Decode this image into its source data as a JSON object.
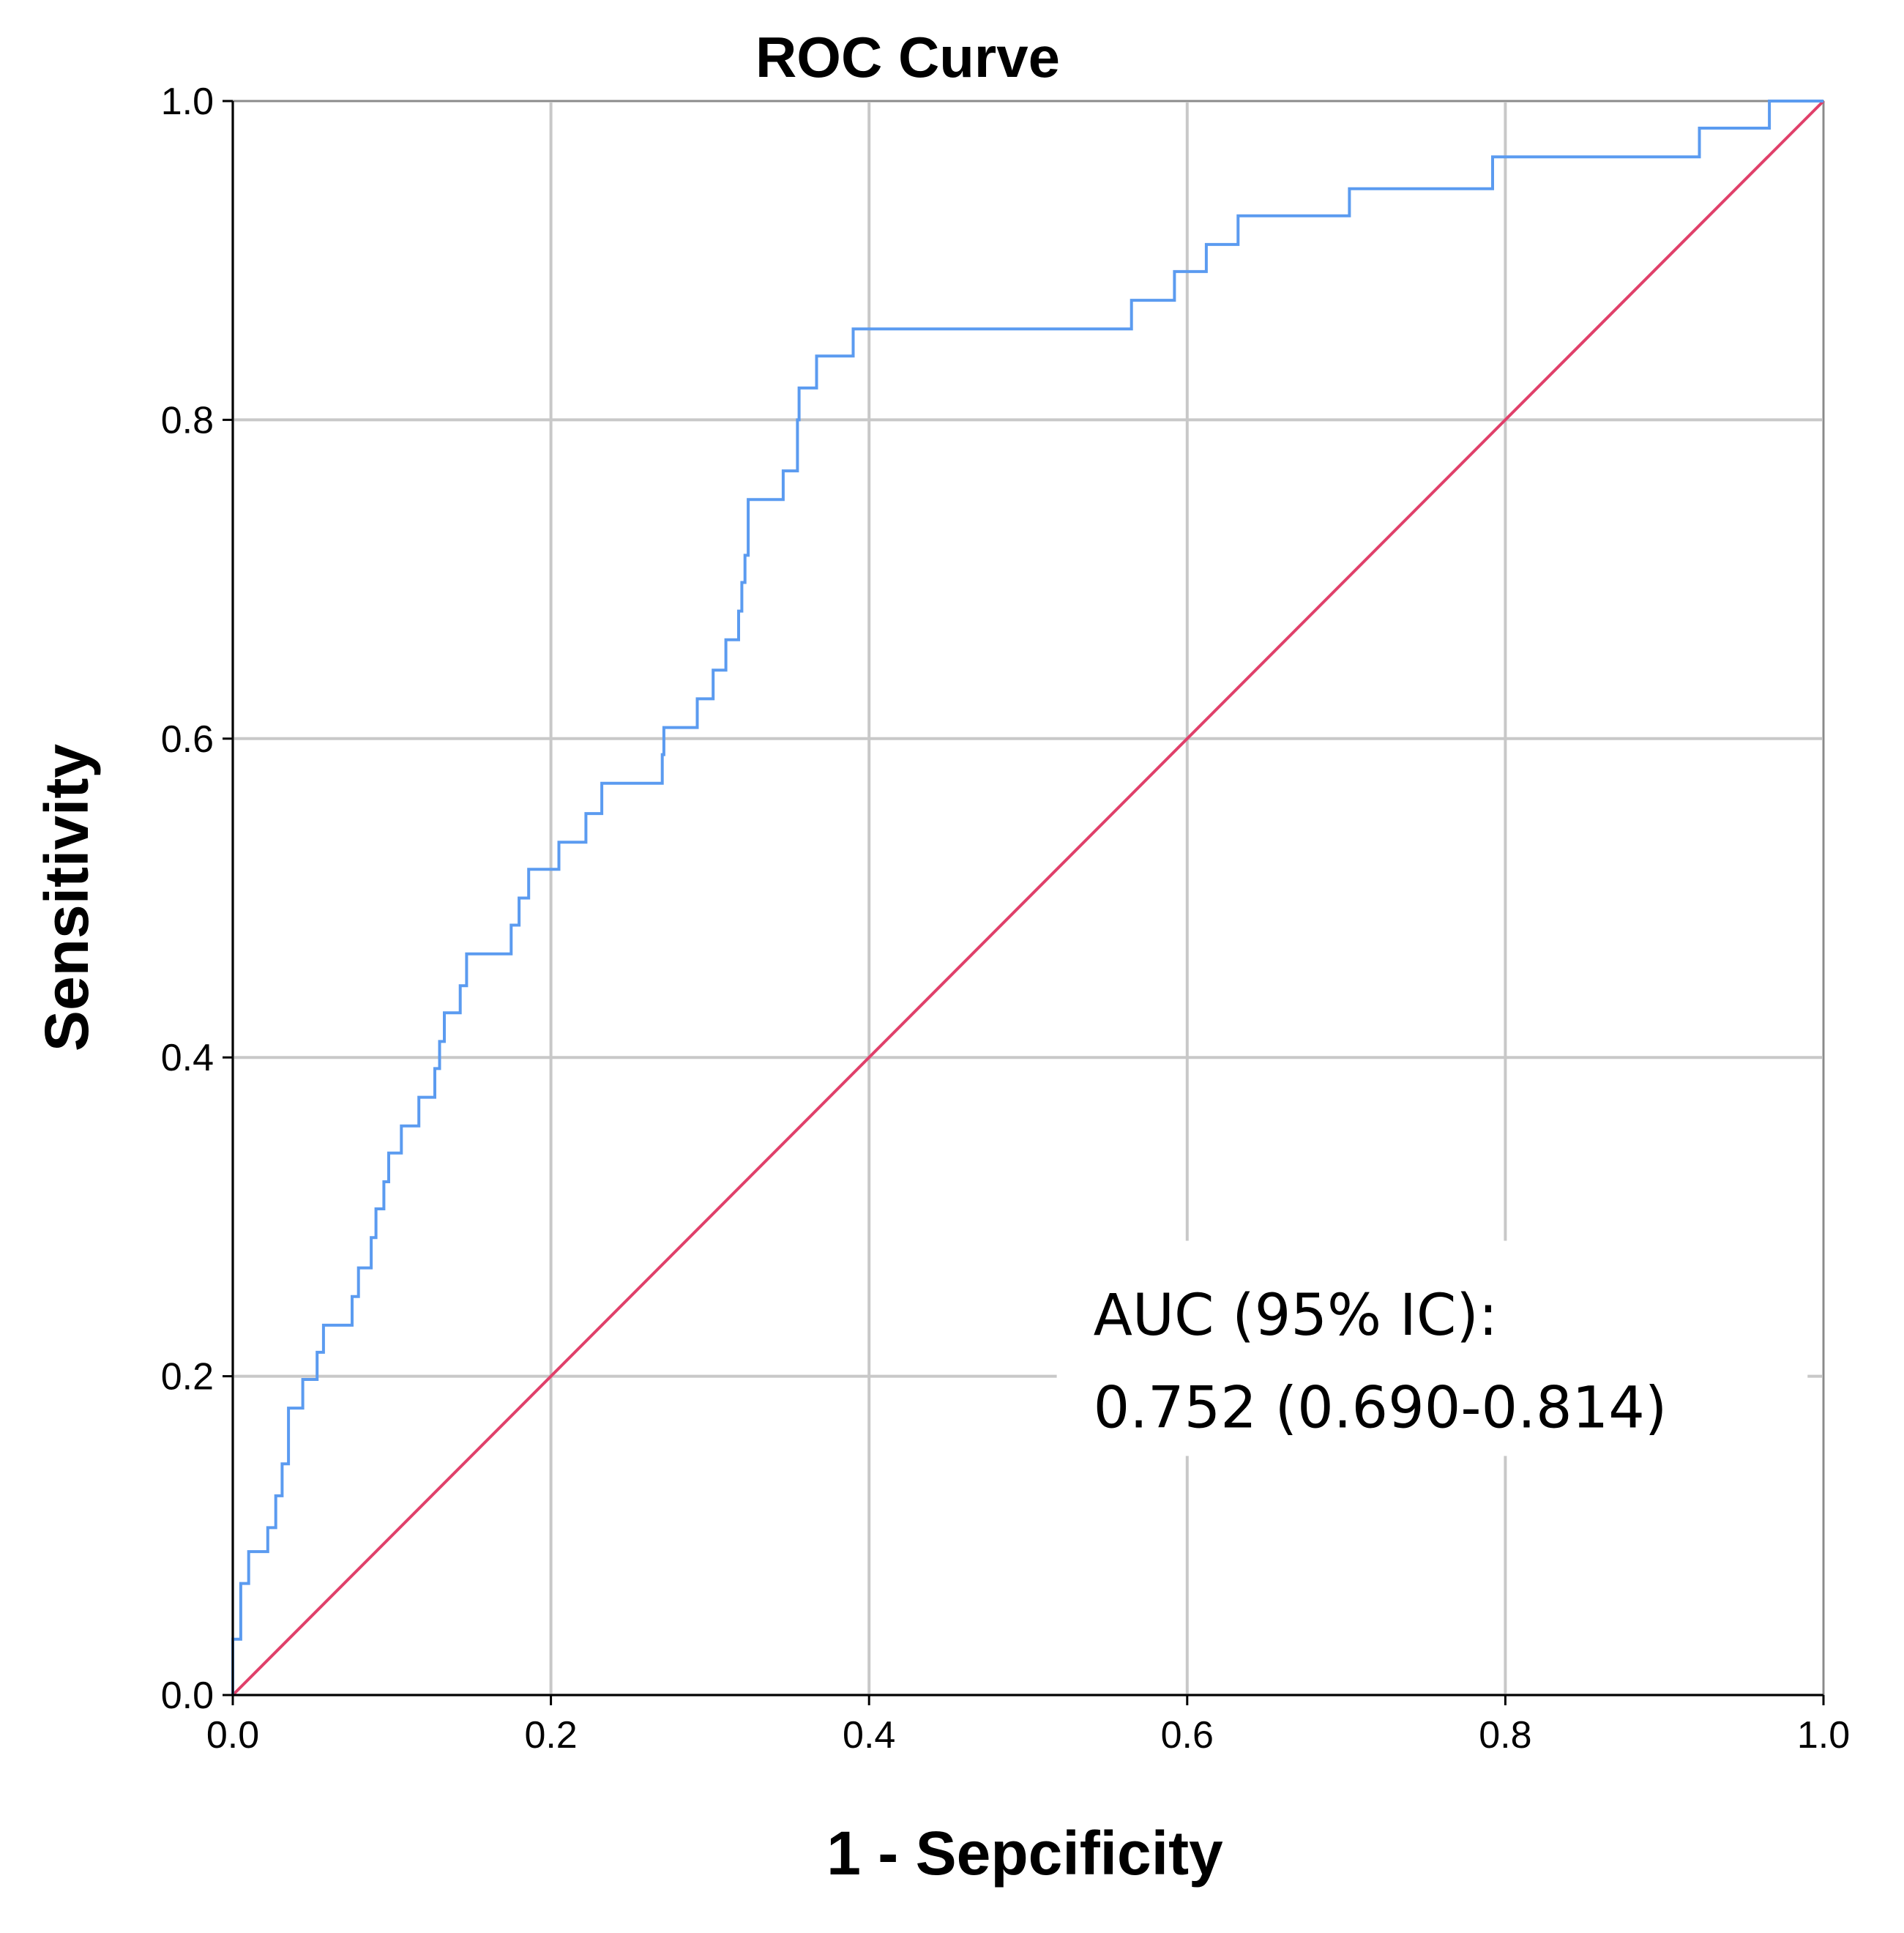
{
  "chart_data": {
    "type": "line",
    "title": "ROC Curve",
    "xlabel": "1 - Sepcificity",
    "ylabel": "Sensitivity",
    "xlim": [
      0,
      1
    ],
    "ylim": [
      0,
      1
    ],
    "grid": true,
    "x_ticks": [
      "0.0",
      "0.2",
      "0.4",
      "0.6",
      "0.8",
      "1.0"
    ],
    "y_ticks": [
      "0.0",
      "0.2",
      "0.4",
      "0.6",
      "0.8",
      "1.0"
    ],
    "annotation": {
      "line1": "AUC (95% IC):",
      "line2": "0.752 (0.690-0.814)"
    },
    "series": [
      {
        "name": "ROC",
        "color": "#5b9bf0",
        "step": true,
        "points": [
          [
            0.0,
            0.0
          ],
          [
            0.0,
            0.035
          ],
          [
            0.005,
            0.035
          ],
          [
            0.005,
            0.07
          ],
          [
            0.01,
            0.07
          ],
          [
            0.01,
            0.09
          ],
          [
            0.022,
            0.09
          ],
          [
            0.022,
            0.105
          ],
          [
            0.027,
            0.105
          ],
          [
            0.027,
            0.125
          ],
          [
            0.031,
            0.125
          ],
          [
            0.031,
            0.145
          ],
          [
            0.035,
            0.145
          ],
          [
            0.035,
            0.18
          ],
          [
            0.044,
            0.18
          ],
          [
            0.044,
            0.198
          ],
          [
            0.053,
            0.198
          ],
          [
            0.053,
            0.215
          ],
          [
            0.057,
            0.215
          ],
          [
            0.057,
            0.232
          ],
          [
            0.075,
            0.232
          ],
          [
            0.075,
            0.25
          ],
          [
            0.079,
            0.25
          ],
          [
            0.079,
            0.268
          ],
          [
            0.087,
            0.268
          ],
          [
            0.087,
            0.287
          ],
          [
            0.09,
            0.287
          ],
          [
            0.09,
            0.305
          ],
          [
            0.095,
            0.305
          ],
          [
            0.095,
            0.322
          ],
          [
            0.098,
            0.322
          ],
          [
            0.098,
            0.34
          ],
          [
            0.106,
            0.34
          ],
          [
            0.106,
            0.357
          ],
          [
            0.117,
            0.357
          ],
          [
            0.117,
            0.375
          ],
          [
            0.127,
            0.375
          ],
          [
            0.127,
            0.393
          ],
          [
            0.13,
            0.393
          ],
          [
            0.13,
            0.41
          ],
          [
            0.133,
            0.41
          ],
          [
            0.133,
            0.428
          ],
          [
            0.143,
            0.428
          ],
          [
            0.143,
            0.445
          ],
          [
            0.147,
            0.445
          ],
          [
            0.147,
            0.465
          ],
          [
            0.175,
            0.465
          ],
          [
            0.175,
            0.483
          ],
          [
            0.18,
            0.483
          ],
          [
            0.18,
            0.5
          ],
          [
            0.186,
            0.5
          ],
          [
            0.186,
            0.518
          ],
          [
            0.205,
            0.518
          ],
          [
            0.205,
            0.535
          ],
          [
            0.222,
            0.535
          ],
          [
            0.222,
            0.553
          ],
          [
            0.232,
            0.553
          ],
          [
            0.232,
            0.572
          ],
          [
            0.27,
            0.572
          ],
          [
            0.27,
            0.59
          ],
          [
            0.271,
            0.59
          ],
          [
            0.271,
            0.607
          ],
          [
            0.292,
            0.607
          ],
          [
            0.292,
            0.625
          ],
          [
            0.302,
            0.625
          ],
          [
            0.302,
            0.643
          ],
          [
            0.31,
            0.643
          ],
          [
            0.31,
            0.662
          ],
          [
            0.318,
            0.662
          ],
          [
            0.318,
            0.68
          ],
          [
            0.32,
            0.68
          ],
          [
            0.32,
            0.698
          ],
          [
            0.322,
            0.698
          ],
          [
            0.322,
            0.715
          ],
          [
            0.324,
            0.715
          ],
          [
            0.324,
            0.75
          ],
          [
            0.346,
            0.75
          ],
          [
            0.346,
            0.768
          ],
          [
            0.355,
            0.768
          ],
          [
            0.355,
            0.8
          ],
          [
            0.356,
            0.8
          ],
          [
            0.356,
            0.82
          ],
          [
            0.367,
            0.82
          ],
          [
            0.367,
            0.84
          ],
          [
            0.39,
            0.84
          ],
          [
            0.39,
            0.857
          ],
          [
            0.565,
            0.857
          ],
          [
            0.565,
            0.875
          ],
          [
            0.592,
            0.875
          ],
          [
            0.592,
            0.893
          ],
          [
            0.612,
            0.893
          ],
          [
            0.612,
            0.91
          ],
          [
            0.632,
            0.91
          ],
          [
            0.632,
            0.928
          ],
          [
            0.702,
            0.928
          ],
          [
            0.702,
            0.945
          ],
          [
            0.792,
            0.945
          ],
          [
            0.792,
            0.965
          ],
          [
            0.922,
            0.965
          ],
          [
            0.922,
            0.983
          ],
          [
            0.966,
            0.983
          ],
          [
            0.966,
            1.0
          ],
          [
            1.0,
            1.0
          ]
        ]
      },
      {
        "name": "Reference line",
        "color": "#e0406a",
        "step": false,
        "points": [
          [
            0.0,
            0.0
          ],
          [
            1.0,
            1.0
          ]
        ]
      }
    ]
  }
}
